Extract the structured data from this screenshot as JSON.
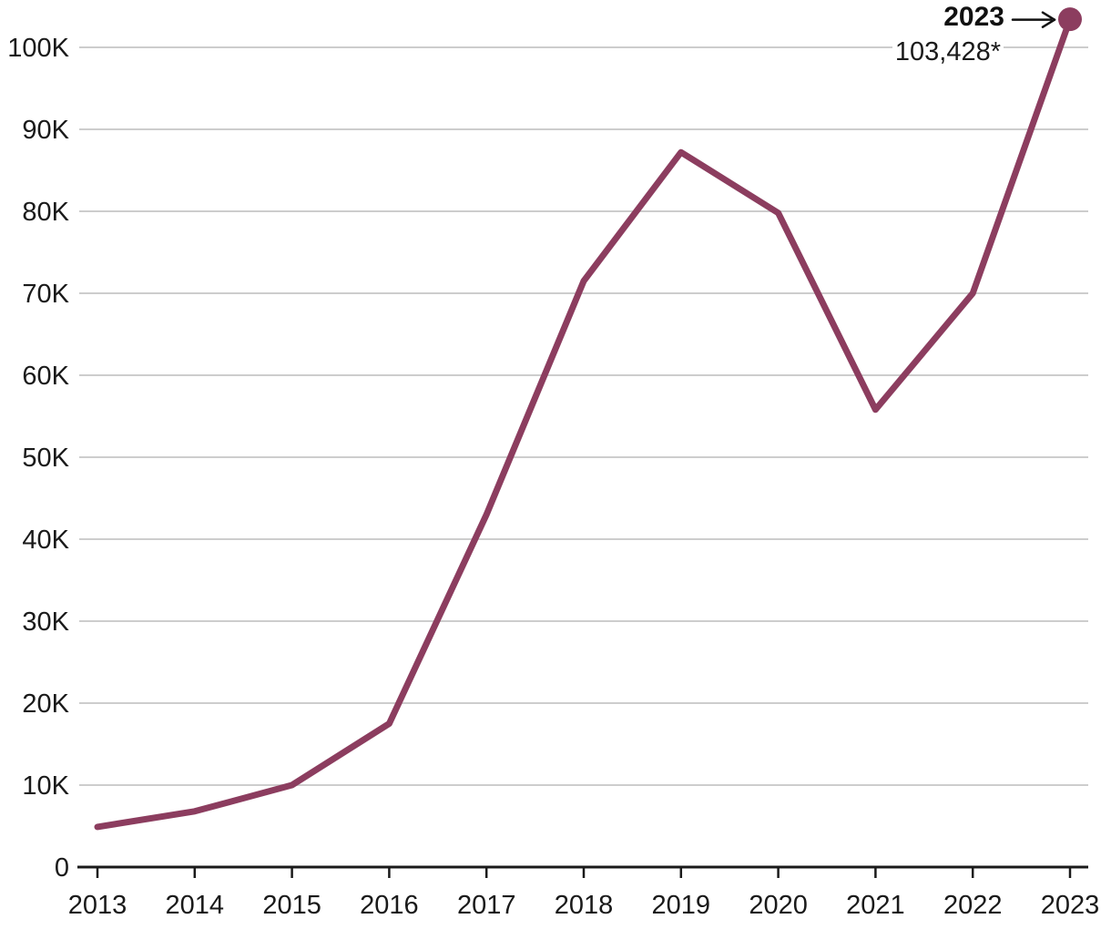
{
  "chart_data": {
    "type": "line",
    "x": [
      2013,
      2014,
      2015,
      2016,
      2017,
      2018,
      2019,
      2020,
      2021,
      2022,
      2023
    ],
    "values": [
      4900,
      6800,
      10000,
      17500,
      43000,
      71500,
      87200,
      79800,
      55800,
      70000,
      103428
    ],
    "xtick_labels": [
      "2013",
      "2014",
      "2015",
      "2016",
      "2017",
      "2018",
      "2019",
      "2020",
      "2021",
      "2022",
      "2023"
    ],
    "ytick_labels": [
      "0",
      "10K",
      "20K",
      "30K",
      "40K",
      "50K",
      "60K",
      "70K",
      "80K",
      "90K",
      "100K"
    ],
    "ytick_values": [
      0,
      10000,
      20000,
      30000,
      40000,
      50000,
      60000,
      70000,
      80000,
      90000,
      100000
    ],
    "ylim": [
      0,
      105000
    ],
    "xlabel": "",
    "ylabel": "",
    "grid": "horizontal",
    "legend": "none",
    "marker_on_last_point": true,
    "annotation": {
      "year_label": "2023",
      "value_label": "103,428*",
      "points_to": "last-point"
    },
    "colors": {
      "line": "#8C3D5F",
      "marker": "#8C3D5F",
      "grid": "#cdcdcd",
      "axis": "#1a1a1a",
      "text": "#1a1a1a",
      "arrow": "#111111",
      "background": "#ffffff"
    }
  }
}
